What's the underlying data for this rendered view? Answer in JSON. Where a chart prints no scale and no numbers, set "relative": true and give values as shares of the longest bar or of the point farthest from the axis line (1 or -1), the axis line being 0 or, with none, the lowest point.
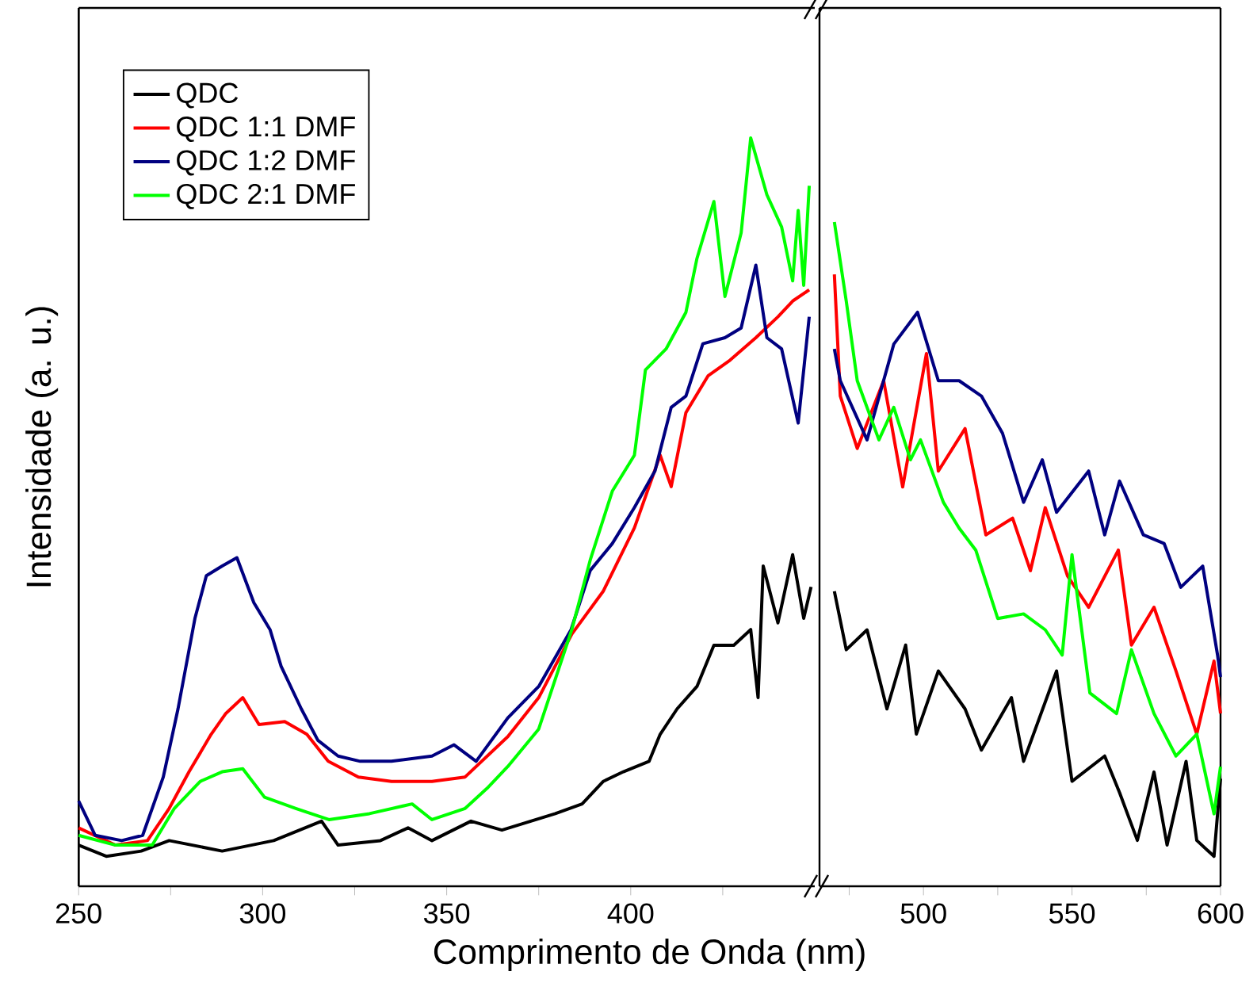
{
  "chart_data": [
    {
      "type": "line",
      "relative": true,
      "xlabel": "Comprimento de Onda (nm)",
      "ylabel": "Intensidade (a. u.)",
      "xlim": [
        250,
        450
      ],
      "xticks": [
        250,
        {
          "value": 275,
          "label": null
        },
        300,
        {
          "value": 325,
          "label": null
        },
        350,
        {
          "value": 375,
          "label": null
        },
        400,
        {
          "value": 425,
          "label": null
        }
      ],
      "legend": "top left",
      "marker": "none",
      "line_style": "solid",
      "series": [
        {
          "name": "QDC",
          "color": "#000000",
          "x": [
            250,
            257.5,
            267,
            274.6,
            289,
            303,
            316,
            320.5,
            332,
            339.5,
            346,
            356.6,
            365,
            379.5,
            386.8,
            392.5,
            398,
            405,
            408,
            412.6,
            418,
            422.6,
            428,
            432.6,
            434.6,
            436,
            440,
            444,
            447,
            449
          ],
          "values": [
            0.055,
            0.04,
            0.047,
            0.061,
            0.047,
            0.061,
            0.087,
            0.055,
            0.061,
            0.078,
            0.061,
            0.087,
            0.075,
            0.097,
            0.11,
            0.14,
            0.153,
            0.167,
            0.203,
            0.237,
            0.267,
            0.322,
            0.322,
            0.343,
            0.252,
            0.428,
            0.352,
            0.443,
            0.358,
            0.4
          ]
        },
        {
          "name": "QDC 1:1 DMF",
          "color": "#ff0000",
          "x": [
            250,
            260,
            268.7,
            274.6,
            280,
            286,
            290,
            294.6,
            299,
            306,
            312,
            317.8,
            326,
            335,
            346,
            355,
            366.6,
            375,
            384,
            392.5,
            401,
            408,
            411,
            415,
            421,
            427,
            434,
            440,
            444,
            448.5
          ],
          "values": [
            0.078,
            0.055,
            0.061,
            0.104,
            0.153,
            0.203,
            0.231,
            0.252,
            0.216,
            0.22,
            0.203,
            0.167,
            0.146,
            0.14,
            0.14,
            0.146,
            0.2,
            0.252,
            0.337,
            0.394,
            0.479,
            0.576,
            0.534,
            0.633,
            0.682,
            0.703,
            0.733,
            0.761,
            0.782,
            0.797
          ]
        },
        {
          "name": "QDC 1:2 DMF",
          "color": "#000080",
          "x": [
            250,
            254.5,
            261.7,
            267.4,
            273,
            277,
            281.6,
            284.7,
            289,
            293,
            297.6,
            302,
            305,
            310.5,
            315,
            320.5,
            326.5,
            335,
            346,
            352,
            358,
            366.6,
            375,
            383.8,
            389,
            395,
            401,
            406.6,
            411,
            415,
            419.6,
            425.6,
            430,
            434,
            437,
            441,
            445.5,
            448.5
          ],
          "values": [
            0.114,
            0.068,
            0.061,
            0.068,
            0.146,
            0.237,
            0.358,
            0.415,
            0.428,
            0.439,
            0.379,
            0.343,
            0.294,
            0.237,
            0.195,
            0.174,
            0.167,
            0.167,
            0.174,
            0.189,
            0.167,
            0.225,
            0.267,
            0.343,
            0.422,
            0.458,
            0.506,
            0.555,
            0.64,
            0.655,
            0.725,
            0.733,
            0.746,
            0.83,
            0.733,
            0.718,
            0.619,
            0.761
          ]
        },
        {
          "name": "QDC 2:1 DMF",
          "color": "#00ff00",
          "x": [
            250,
            260,
            270,
            276,
            283,
            289,
            294.6,
            300.5,
            309,
            318,
            329,
            340.6,
            346,
            355,
            361,
            366.6,
            375,
            384,
            389,
            395,
            401,
            404,
            409.6,
            415,
            418,
            422.6,
            425.6,
            430,
            432.6,
            437,
            441,
            444,
            445.5,
            447,
            448.5
          ],
          "values": [
            0.068,
            0.055,
            0.055,
            0.104,
            0.14,
            0.153,
            0.157,
            0.119,
            0.104,
            0.089,
            0.097,
            0.11,
            0.089,
            0.104,
            0.131,
            0.16,
            0.21,
            0.343,
            0.436,
            0.528,
            0.576,
            0.69,
            0.718,
            0.767,
            0.839,
            0.915,
            0.788,
            0.873,
            1.0,
            0.924,
            0.881,
            0.809,
            0.903,
            0.803,
            0.936
          ]
        }
      ]
    },
    {
      "type": "line",
      "relative": true,
      "xlim": [
        465,
        600
      ],
      "xticks": [
        {
          "value": 475,
          "label": null
        },
        500,
        {
          "value": 525,
          "label": null
        },
        550,
        {
          "value": 575,
          "label": null
        },
        600
      ],
      "marker": "none",
      "line_style": "solid",
      "series": [
        {
          "color": "#000000",
          "x": [
            470,
            474,
            481,
            487.7,
            494,
            497.6,
            505,
            514,
            519.5,
            529.6,
            533.7,
            544.8,
            550,
            561,
            566,
            572,
            577.6,
            582,
            588.4,
            592,
            597.8,
            600
          ],
          "values": [
            0.444,
            0.356,
            0.386,
            0.267,
            0.363,
            0.229,
            0.324,
            0.267,
            0.205,
            0.284,
            0.188,
            0.324,
            0.158,
            0.196,
            0.141,
            0.069,
            0.172,
            0.062,
            0.188,
            0.069,
            0.045,
            0.162
          ]
        },
        {
          "color": "#ff0000",
          "x": [
            470,
            472,
            477.7,
            486.6,
            493,
            501,
            505,
            514,
            521,
            530,
            536,
            541,
            548.5,
            555.6,
            565.6,
            570,
            577.6,
            585,
            592,
            597.8,
            600
          ],
          "values": [
            0.921,
            0.738,
            0.659,
            0.761,
            0.601,
            0.802,
            0.625,
            0.689,
            0.529,
            0.554,
            0.475,
            0.57,
            0.467,
            0.42,
            0.506,
            0.363,
            0.42,
            0.324,
            0.229,
            0.339,
            0.26
          ]
        },
        {
          "color": "#000080",
          "x": [
            470,
            472,
            481,
            490,
            498,
            505,
            512,
            519.5,
            526.6,
            533.7,
            540,
            544.8,
            555.6,
            561,
            566,
            574,
            581,
            586.6,
            594,
            599,
            600
          ],
          "values": [
            0.809,
            0.761,
            0.672,
            0.816,
            0.864,
            0.761,
            0.761,
            0.738,
            0.682,
            0.578,
            0.642,
            0.563,
            0.625,
            0.529,
            0.61,
            0.529,
            0.516,
            0.45,
            0.482,
            0.348,
            0.315
          ]
        },
        {
          "color": "#00ff00",
          "x": [
            470,
            474,
            477.7,
            485,
            490,
            495.6,
            499,
            506.7,
            512,
            517.6,
            525,
            533.7,
            541,
            546.7,
            550,
            556,
            565,
            570,
            577.6,
            585,
            592,
            597.8,
            600
          ],
          "values": [
            1.0,
            0.881,
            0.761,
            0.672,
            0.721,
            0.642,
            0.672,
            0.578,
            0.539,
            0.506,
            0.403,
            0.41,
            0.386,
            0.348,
            0.499,
            0.291,
            0.26,
            0.356,
            0.26,
            0.196,
            0.229,
            0.109,
            0.18
          ]
        }
      ]
    }
  ]
}
